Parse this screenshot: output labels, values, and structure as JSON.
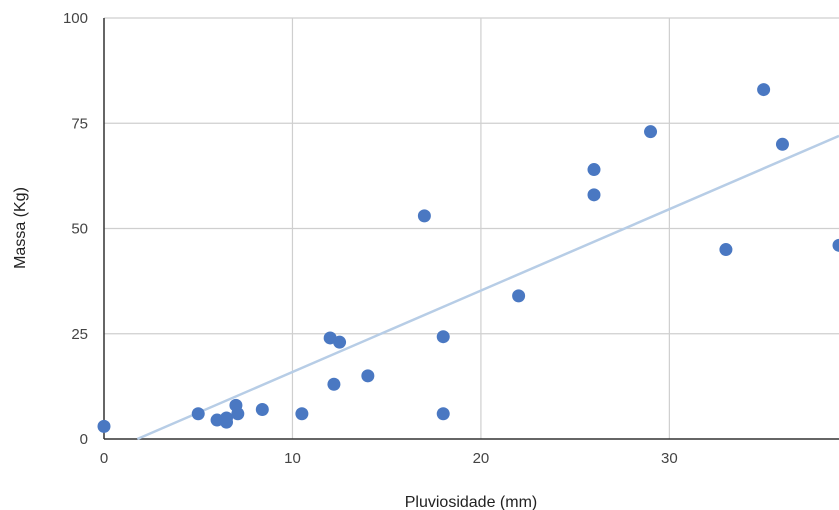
{
  "chart_data": {
    "type": "scatter",
    "xlabel": "Pluviosidade (mm)",
    "ylabel": "Massa (Kg)",
    "xlim": [
      0,
      39
    ],
    "ylim": [
      0,
      100
    ],
    "x_ticks": [
      0,
      10,
      20,
      30
    ],
    "y_ticks": [
      0,
      25,
      50,
      75,
      100
    ],
    "x_tick_labels": [
      "0",
      "10",
      "20",
      "30"
    ],
    "y_tick_labels": [
      "0",
      "25",
      "50",
      "75",
      "100"
    ],
    "grid": true,
    "legend": "none",
    "point_color": "#4a78c2",
    "trendline_color": "#b7cde6",
    "points": [
      {
        "x": 0,
        "y": 3
      },
      {
        "x": 5,
        "y": 6
      },
      {
        "x": 6,
        "y": 4.5
      },
      {
        "x": 6.5,
        "y": 5
      },
      {
        "x": 6.5,
        "y": 4
      },
      {
        "x": 7,
        "y": 8
      },
      {
        "x": 7.1,
        "y": 6
      },
      {
        "x": 8.4,
        "y": 7
      },
      {
        "x": 10.5,
        "y": 6
      },
      {
        "x": 12,
        "y": 24
      },
      {
        "x": 12.2,
        "y": 13
      },
      {
        "x": 12.5,
        "y": 23
      },
      {
        "x": 14,
        "y": 15
      },
      {
        "x": 17,
        "y": 53
      },
      {
        "x": 18,
        "y": 24.3
      },
      {
        "x": 18,
        "y": 6
      },
      {
        "x": 22,
        "y": 34
      },
      {
        "x": 26,
        "y": 64
      },
      {
        "x": 26,
        "y": 58
      },
      {
        "x": 29,
        "y": 73
      },
      {
        "x": 33,
        "y": 45
      },
      {
        "x": 35,
        "y": 83
      },
      {
        "x": 36,
        "y": 70
      },
      {
        "x": 39,
        "y": 46
      }
    ],
    "trendline": {
      "x": [
        1.77,
        39
      ],
      "y": [
        0,
        72
      ]
    }
  }
}
